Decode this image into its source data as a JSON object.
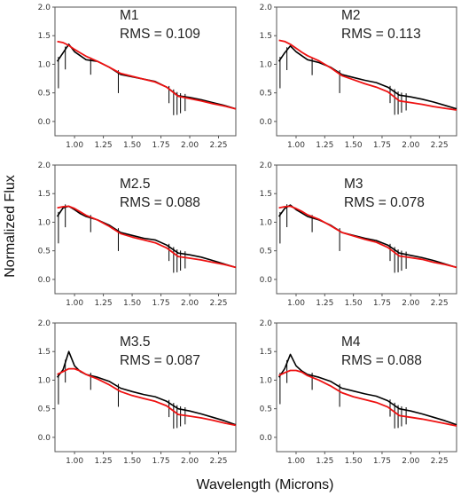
{
  "figure": {
    "ylabel": "Normalized Flux",
    "xlabel": "Wavelength (Microns)",
    "colors": {
      "observed": "#000000",
      "model": "#ee1111",
      "frame": "#555555"
    }
  },
  "chart_data": [
    {
      "type": "line",
      "label": "M1",
      "rms_text": "RMS = 0.109",
      "xlim": [
        0.83,
        2.4
      ],
      "ylim": [
        -0.25,
        2.0
      ],
      "xticks": [
        "1.00",
        "1.25",
        "1.50",
        "1.75",
        "2.00",
        "2.25"
      ],
      "yticks": [
        "0.0",
        "0.5",
        "1.0",
        "1.5",
        "2.0"
      ],
      "obs_x": [
        0.85,
        0.9,
        0.95,
        1.0,
        1.05,
        1.1,
        1.2,
        1.3,
        1.4,
        1.5,
        1.6,
        1.7,
        1.8,
        1.9,
        2.0,
        2.1,
        2.2,
        2.3,
        2.4
      ],
      "obs_y": [
        1.05,
        1.2,
        1.35,
        1.22,
        1.15,
        1.08,
        1.05,
        0.95,
        0.82,
        0.78,
        0.74,
        0.7,
        0.6,
        0.45,
        0.42,
        0.38,
        0.33,
        0.28,
        0.22
      ],
      "model_x": [
        0.85,
        0.9,
        0.95,
        1.0,
        1.05,
        1.1,
        1.2,
        1.3,
        1.4,
        1.5,
        1.6,
        1.7,
        1.8,
        1.9,
        2.0,
        2.1,
        2.2,
        2.3,
        2.4
      ],
      "model_y": [
        1.4,
        1.38,
        1.33,
        1.26,
        1.2,
        1.14,
        1.05,
        0.95,
        0.84,
        0.79,
        0.74,
        0.69,
        0.6,
        0.44,
        0.4,
        0.36,
        0.31,
        0.27,
        0.22
      ]
    },
    {
      "type": "line",
      "label": "M2",
      "rms_text": "RMS = 0.113",
      "xlim": [
        0.83,
        2.4
      ],
      "ylim": [
        -0.25,
        2.0
      ],
      "xticks": [
        "1.00",
        "1.25",
        "1.50",
        "1.75",
        "2.00",
        "2.25"
      ],
      "yticks": [
        "0.0",
        "0.5",
        "1.0",
        "1.5",
        "2.0"
      ],
      "obs_x": [
        0.85,
        0.9,
        0.95,
        1.0,
        1.05,
        1.1,
        1.2,
        1.3,
        1.4,
        1.5,
        1.6,
        1.7,
        1.8,
        1.9,
        2.0,
        2.1,
        2.2,
        2.3,
        2.4
      ],
      "obs_y": [
        1.05,
        1.2,
        1.32,
        1.22,
        1.15,
        1.08,
        1.03,
        0.95,
        0.82,
        0.77,
        0.72,
        0.68,
        0.6,
        0.46,
        0.43,
        0.39,
        0.34,
        0.28,
        0.22
      ],
      "model_x": [
        0.85,
        0.9,
        0.95,
        1.0,
        1.05,
        1.1,
        1.2,
        1.3,
        1.4,
        1.5,
        1.6,
        1.7,
        1.8,
        1.9,
        2.0,
        2.1,
        2.2,
        2.3,
        2.4
      ],
      "model_y": [
        1.42,
        1.4,
        1.35,
        1.28,
        1.21,
        1.15,
        1.06,
        0.94,
        0.8,
        0.73,
        0.66,
        0.6,
        0.52,
        0.36,
        0.33,
        0.3,
        0.26,
        0.23,
        0.2
      ]
    },
    {
      "type": "line",
      "label": "M2.5",
      "rms_text": "RMS = 0.088",
      "xlim": [
        0.83,
        2.4
      ],
      "ylim": [
        -0.25,
        2.0
      ],
      "xticks": [
        "1.00",
        "1.25",
        "1.50",
        "1.75",
        "2.00",
        "2.25"
      ],
      "yticks": [
        "0.0",
        "0.5",
        "1.0",
        "1.5",
        "2.0"
      ],
      "obs_x": [
        0.85,
        0.9,
        0.95,
        1.0,
        1.05,
        1.1,
        1.2,
        1.3,
        1.4,
        1.5,
        1.6,
        1.7,
        1.8,
        1.9,
        2.0,
        2.1,
        2.2,
        2.3,
        2.4
      ],
      "obs_y": [
        1.1,
        1.25,
        1.28,
        1.22,
        1.15,
        1.1,
        1.04,
        0.95,
        0.82,
        0.77,
        0.72,
        0.69,
        0.6,
        0.46,
        0.43,
        0.39,
        0.33,
        0.27,
        0.21
      ],
      "model_x": [
        0.85,
        0.9,
        0.95,
        1.0,
        1.05,
        1.1,
        1.2,
        1.3,
        1.4,
        1.5,
        1.6,
        1.7,
        1.8,
        1.9,
        2.0,
        2.1,
        2.2,
        2.3,
        2.4
      ],
      "model_y": [
        1.25,
        1.27,
        1.28,
        1.24,
        1.18,
        1.12,
        1.04,
        0.93,
        0.8,
        0.74,
        0.69,
        0.64,
        0.55,
        0.4,
        0.37,
        0.34,
        0.3,
        0.26,
        0.21
      ]
    },
    {
      "type": "line",
      "label": "M3",
      "rms_text": "RMS = 0.078",
      "xlim": [
        0.83,
        2.4
      ],
      "ylim": [
        -0.25,
        2.0
      ],
      "xticks": [
        "1.00",
        "1.25",
        "1.50",
        "1.75",
        "2.00",
        "2.25"
      ],
      "yticks": [
        "0.0",
        "0.5",
        "1.0",
        "1.5",
        "2.0"
      ],
      "obs_x": [
        0.85,
        0.9,
        0.95,
        1.0,
        1.05,
        1.1,
        1.2,
        1.3,
        1.4,
        1.5,
        1.6,
        1.7,
        1.8,
        1.9,
        2.0,
        2.1,
        2.2,
        2.3,
        2.4
      ],
      "obs_y": [
        1.1,
        1.24,
        1.3,
        1.22,
        1.16,
        1.1,
        1.04,
        0.95,
        0.82,
        0.77,
        0.72,
        0.68,
        0.6,
        0.46,
        0.42,
        0.38,
        0.33,
        0.27,
        0.21
      ],
      "model_x": [
        0.85,
        0.9,
        0.95,
        1.0,
        1.05,
        1.1,
        1.2,
        1.3,
        1.4,
        1.5,
        1.6,
        1.7,
        1.8,
        1.9,
        2.0,
        2.1,
        2.2,
        2.3,
        2.4
      ],
      "model_y": [
        1.25,
        1.27,
        1.28,
        1.24,
        1.19,
        1.13,
        1.05,
        0.94,
        0.82,
        0.76,
        0.7,
        0.65,
        0.56,
        0.41,
        0.38,
        0.35,
        0.3,
        0.26,
        0.21
      ]
    },
    {
      "type": "line",
      "label": "M3.5",
      "rms_text": "RMS = 0.087",
      "xlim": [
        0.83,
        2.4
      ],
      "ylim": [
        -0.25,
        2.0
      ],
      "xticks": [
        "1.00",
        "1.25",
        "1.50",
        "1.75",
        "2.00",
        "2.25"
      ],
      "yticks": [
        "0.0",
        "0.5",
        "1.0",
        "1.5",
        "2.0"
      ],
      "obs_x": [
        0.85,
        0.9,
        0.95,
        1.0,
        1.05,
        1.1,
        1.2,
        1.3,
        1.4,
        1.5,
        1.6,
        1.7,
        1.8,
        1.9,
        2.0,
        2.1,
        2.2,
        2.3,
        2.4
      ],
      "obs_y": [
        1.05,
        1.18,
        1.5,
        1.25,
        1.15,
        1.1,
        1.05,
        0.98,
        0.86,
        0.8,
        0.75,
        0.71,
        0.63,
        0.5,
        0.46,
        0.41,
        0.35,
        0.29,
        0.22
      ],
      "model_x": [
        0.85,
        0.9,
        0.95,
        1.0,
        1.05,
        1.1,
        1.2,
        1.3,
        1.4,
        1.5,
        1.6,
        1.7,
        1.8,
        1.9,
        2.0,
        2.1,
        2.2,
        2.3,
        2.4
      ],
      "model_y": [
        1.1,
        1.15,
        1.2,
        1.2,
        1.16,
        1.1,
        1.02,
        0.92,
        0.8,
        0.73,
        0.68,
        0.63,
        0.55,
        0.4,
        0.37,
        0.34,
        0.3,
        0.25,
        0.21
      ]
    },
    {
      "type": "line",
      "label": "M4",
      "rms_text": "RMS = 0.088",
      "xlim": [
        0.83,
        2.4
      ],
      "ylim": [
        -0.25,
        2.0
      ],
      "xticks": [
        "1.00",
        "1.25",
        "1.50",
        "1.75",
        "2.00",
        "2.25"
      ],
      "yticks": [
        "0.0",
        "0.5",
        "1.0",
        "1.5",
        "2.0"
      ],
      "obs_x": [
        0.85,
        0.9,
        0.95,
        1.0,
        1.05,
        1.1,
        1.2,
        1.3,
        1.4,
        1.5,
        1.6,
        1.7,
        1.8,
        1.9,
        2.0,
        2.1,
        2.2,
        2.3,
        2.4
      ],
      "obs_y": [
        1.05,
        1.2,
        1.45,
        1.25,
        1.16,
        1.1,
        1.05,
        0.98,
        0.86,
        0.81,
        0.76,
        0.72,
        0.64,
        0.5,
        0.46,
        0.41,
        0.35,
        0.29,
        0.22
      ],
      "model_x": [
        0.85,
        0.9,
        0.95,
        1.0,
        1.05,
        1.1,
        1.2,
        1.3,
        1.4,
        1.5,
        1.6,
        1.7,
        1.8,
        1.9,
        2.0,
        2.1,
        2.2,
        2.3,
        2.4
      ],
      "model_y": [
        1.08,
        1.13,
        1.17,
        1.17,
        1.14,
        1.08,
        1.0,
        0.9,
        0.78,
        0.71,
        0.66,
        0.61,
        0.53,
        0.38,
        0.35,
        0.32,
        0.28,
        0.24,
        0.2
      ]
    }
  ]
}
